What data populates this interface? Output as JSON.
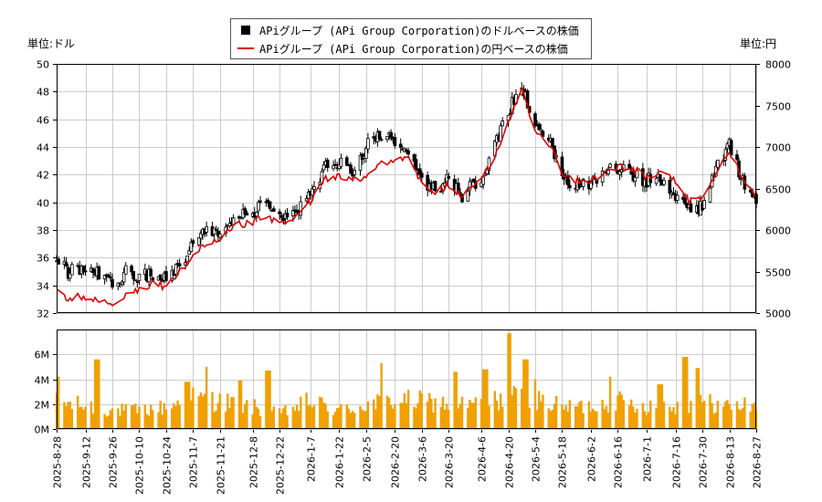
{
  "units": {
    "left": "単位:ドル",
    "right": "単位:円"
  },
  "legend": {
    "usd": "APiグループ (APi Group Corporation)のドルベースの株価",
    "jpy": "APiグループ (APi Group Corporation)の円ベースの株価"
  },
  "colors": {
    "candle": "#000000",
    "jpy_line": "#dd0000",
    "volume": "#f0a000",
    "grid": "#cccccc"
  },
  "chart_data": [
    {
      "type": "candlestick",
      "title": "",
      "series": [
        {
          "name": "APiグループ (APi Group Corporation)のドルベースの株価",
          "axis": "left",
          "kind": "ohlc"
        },
        {
          "name": "APiグループ (APi Group Corporation)の円ベースの株価",
          "axis": "right",
          "kind": "line"
        }
      ],
      "x_start": "2025-8-28",
      "x_end": "2026-8-27",
      "x_ticks": [
        "2025-8-28",
        "2025-9-12",
        "2025-9-26",
        "2025-10-10",
        "2025-10-24",
        "2025-11-7",
        "2025-11-21",
        "2025-12-8",
        "2025-12-22",
        "2026-1-7",
        "2026-1-22",
        "2026-2-5",
        "2026-2-20",
        "2026-3-6",
        "2026-3-20",
        "2026-4-6",
        "2026-4-20",
        "2026-5-4",
        "2026-5-18",
        "2026-6-2",
        "2026-6-16",
        "2026-7-1",
        "2026-7-16",
        "2026-7-30",
        "2026-8-13",
        "2026-8-27"
      ],
      "y_left": {
        "ylim": [
          32,
          50
        ],
        "ticks": [
          32,
          34,
          36,
          38,
          40,
          42,
          44,
          46,
          48,
          50
        ]
      },
      "y_right": {
        "ylim": [
          5000,
          8000
        ],
        "ticks": [
          5000,
          5500,
          6000,
          6500,
          7000,
          7500,
          8000
        ]
      },
      "usd_close_points": [
        [
          "2025-8-28",
          35.8
        ],
        [
          "2025-9-3",
          35.0
        ],
        [
          "2025-9-12",
          35.1
        ],
        [
          "2025-9-22",
          34.7
        ],
        [
          "2025-9-26",
          34.1
        ],
        [
          "2025-10-3",
          35.0
        ],
        [
          "2025-10-10",
          34.6
        ],
        [
          "2025-10-17",
          34.8
        ],
        [
          "2025-10-24",
          34.6
        ],
        [
          "2025-10-31",
          35.5
        ],
        [
          "2025-11-7",
          37.0
        ],
        [
          "2025-11-14",
          37.9
        ],
        [
          "2025-11-21",
          37.5
        ],
        [
          "2025-11-28",
          39.0
        ],
        [
          "2025-12-8",
          39.2
        ],
        [
          "2025-12-15",
          40.0
        ],
        [
          "2025-12-22",
          38.8
        ],
        [
          "2025-12-30",
          39.2
        ],
        [
          "2026-1-7",
          40.5
        ],
        [
          "2026-1-14",
          42.5
        ],
        [
          "2026-1-22",
          42.8
        ],
        [
          "2026-1-29",
          42.1
        ],
        [
          "2026-2-5",
          44.0
        ],
        [
          "2026-2-12",
          45.0
        ],
        [
          "2026-2-20",
          44.4
        ],
        [
          "2026-2-27",
          43.8
        ],
        [
          "2026-3-6",
          41.5
        ],
        [
          "2026-3-13",
          41.0
        ],
        [
          "2026-3-20",
          41.6
        ],
        [
          "2026-3-27",
          40.5
        ],
        [
          "2026-4-6",
          41.9
        ],
        [
          "2026-4-13",
          44.0
        ],
        [
          "2026-4-20",
          46.5
        ],
        [
          "2026-4-27",
          48.6
        ],
        [
          "2026-5-4",
          45.5
        ],
        [
          "2026-5-11",
          44.6
        ],
        [
          "2026-5-18",
          41.8
        ],
        [
          "2026-5-25",
          41.3
        ],
        [
          "2026-6-2",
          41.2
        ],
        [
          "2026-6-9",
          42.3
        ],
        [
          "2026-6-16",
          42.5
        ],
        [
          "2026-6-23",
          42.0
        ],
        [
          "2026-7-1",
          41.6
        ],
        [
          "2026-7-8",
          41.9
        ],
        [
          "2026-7-16",
          40.5
        ],
        [
          "2026-7-23",
          39.4
        ],
        [
          "2026-7-30",
          39.6
        ],
        [
          "2026-8-6",
          42.5
        ],
        [
          "2026-8-13",
          44.1
        ],
        [
          "2026-8-20",
          41.5
        ],
        [
          "2026-8-27",
          40.3
        ]
      ],
      "jpy_close_points": [
        [
          "2025-8-28",
          5280
        ],
        [
          "2025-9-3",
          5180
        ],
        [
          "2025-9-12",
          5200
        ],
        [
          "2025-9-22",
          5120
        ],
        [
          "2025-9-26",
          5100
        ],
        [
          "2025-10-3",
          5200
        ],
        [
          "2025-10-10",
          5300
        ],
        [
          "2025-10-17",
          5350
        ],
        [
          "2025-10-24",
          5320
        ],
        [
          "2025-10-31",
          5500
        ],
        [
          "2025-11-7",
          5700
        ],
        [
          "2025-11-14",
          5850
        ],
        [
          "2025-11-21",
          5850
        ],
        [
          "2025-11-28",
          6050
        ],
        [
          "2025-12-8",
          6100
        ],
        [
          "2025-12-15",
          6180
        ],
        [
          "2025-12-22",
          6050
        ],
        [
          "2025-12-30",
          6150
        ],
        [
          "2026-1-7",
          6350
        ],
        [
          "2026-1-14",
          6600
        ],
        [
          "2026-1-22",
          6650
        ],
        [
          "2026-1-29",
          6600
        ],
        [
          "2026-2-5",
          6650
        ],
        [
          "2026-2-12",
          6800
        ],
        [
          "2026-2-20",
          6850
        ],
        [
          "2026-2-27",
          6850
        ],
        [
          "2026-3-6",
          6550
        ],
        [
          "2026-3-13",
          6450
        ],
        [
          "2026-3-20",
          6550
        ],
        [
          "2026-3-27",
          6420
        ],
        [
          "2026-4-6",
          6600
        ],
        [
          "2026-4-13",
          6900
        ],
        [
          "2026-4-20",
          7300
        ],
        [
          "2026-4-27",
          7700
        ],
        [
          "2026-5-4",
          7200
        ],
        [
          "2026-5-11",
          7050
        ],
        [
          "2026-5-18",
          6700
        ],
        [
          "2026-5-25",
          6600
        ],
        [
          "2026-6-2",
          6600
        ],
        [
          "2026-6-9",
          6700
        ],
        [
          "2026-6-16",
          6750
        ],
        [
          "2026-6-23",
          6750
        ],
        [
          "2026-7-1",
          6650
        ],
        [
          "2026-7-8",
          6700
        ],
        [
          "2026-7-16",
          6600
        ],
        [
          "2026-7-23",
          6350
        ],
        [
          "2026-7-30",
          6400
        ],
        [
          "2026-8-6",
          6700
        ],
        [
          "2026-8-13",
          6950
        ],
        [
          "2026-8-20",
          6600
        ],
        [
          "2026-8-27",
          6400
        ]
      ]
    },
    {
      "type": "bar",
      "title": "",
      "series": [
        {
          "name": "volume",
          "kind": "bar"
        }
      ],
      "x_start": "2025-8-28",
      "x_end": "2026-8-27",
      "ylim": [
        0,
        8000000
      ],
      "y_ticks": [
        0,
        2000000,
        4000000,
        6000000
      ],
      "y_tick_labels": [
        "0M",
        "2M",
        "4M",
        "6M"
      ],
      "volume_level_points": [
        [
          "2025-8-28",
          2.3
        ],
        [
          "2025-9-12",
          2.0
        ],
        [
          "2025-9-26",
          1.6
        ],
        [
          "2025-10-10",
          1.6
        ],
        [
          "2025-10-24",
          1.9
        ],
        [
          "2025-11-7",
          2.7
        ],
        [
          "2025-11-21",
          2.4
        ],
        [
          "2025-12-8",
          1.9
        ],
        [
          "2025-12-22",
          1.3
        ],
        [
          "2026-1-7",
          2.4
        ],
        [
          "2026-1-22",
          1.6
        ],
        [
          "2026-2-5",
          2.1
        ],
        [
          "2026-2-20",
          2.5
        ],
        [
          "2026-3-6",
          2.4
        ],
        [
          "2026-3-20",
          2.2
        ],
        [
          "2026-4-6",
          2.1
        ],
        [
          "2026-4-20",
          2.8
        ],
        [
          "2026-5-4",
          2.6
        ],
        [
          "2026-5-18",
          1.9
        ],
        [
          "2026-6-2",
          2.0
        ],
        [
          "2026-6-16",
          2.4
        ],
        [
          "2026-7-1",
          2.0
        ],
        [
          "2026-7-16",
          2.1
        ],
        [
          "2026-7-30",
          2.3
        ],
        [
          "2026-8-13",
          2.0
        ],
        [
          "2026-8-27",
          2.1
        ]
      ],
      "volume_spikes": [
        [
          "2025-8-30",
          4.2
        ],
        [
          "2025-9-18",
          5.6
        ],
        [
          "2025-11-4",
          3.8
        ],
        [
          "2025-11-15",
          5.0
        ],
        [
          "2025-12-1",
          3.9
        ],
        [
          "2025-12-16",
          4.7
        ],
        [
          "2026-2-14",
          5.3
        ],
        [
          "2026-3-23",
          4.6
        ],
        [
          "2026-4-8",
          4.8
        ],
        [
          "2026-4-20",
          7.7
        ],
        [
          "2026-4-29",
          5.6
        ],
        [
          "2026-5-3",
          4.0
        ],
        [
          "2026-6-13",
          4.2
        ],
        [
          "2026-7-8",
          3.6
        ],
        [
          "2026-7-21",
          5.8
        ],
        [
          "2026-7-27",
          4.9
        ]
      ]
    }
  ]
}
